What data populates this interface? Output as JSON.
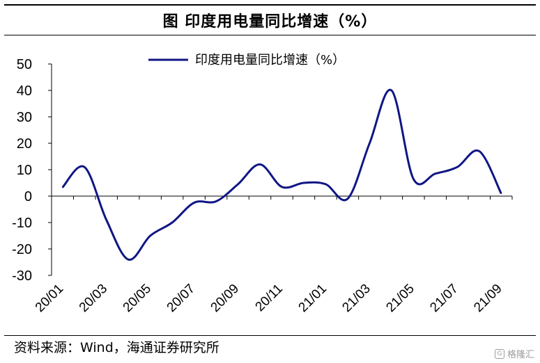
{
  "title": "图  印度用电量同比增速（%）",
  "source": "资料来源：Wind，海通证券研究所",
  "watermark": {
    "icon": "G",
    "text": "格隆汇"
  },
  "colors": {
    "line": "#0f1684",
    "axis": "#000000"
  },
  "chart_data": {
    "type": "line",
    "x": [
      "20/01",
      "20/02",
      "20/03",
      "20/04",
      "20/05",
      "20/06",
      "20/07",
      "20/08",
      "20/09",
      "20/10",
      "20/11",
      "20/12",
      "21/01",
      "21/02",
      "21/03",
      "21/04",
      "21/05",
      "21/06",
      "21/07",
      "21/08",
      "21/09"
    ],
    "xticks": [
      "20/01",
      "20/03",
      "20/05",
      "20/07",
      "20/09",
      "20/11",
      "21/01",
      "21/03",
      "21/05",
      "21/07",
      "21/09"
    ],
    "series": [
      {
        "name": "印度用电量同比增速（%）",
        "values": [
          3.3,
          11,
          -9,
          -24,
          -15,
          -10,
          -2.5,
          -2,
          4.5,
          12,
          3.5,
          5,
          4.5,
          -1,
          20,
          40,
          6.5,
          8.5,
          11,
          17,
          1
        ]
      }
    ],
    "ylim": [
      -30,
      50
    ],
    "yticks": [
      50,
      40,
      30,
      20,
      10,
      0,
      -10,
      -20,
      -30
    ],
    "legend_position": "top-center",
    "grid": false
  }
}
